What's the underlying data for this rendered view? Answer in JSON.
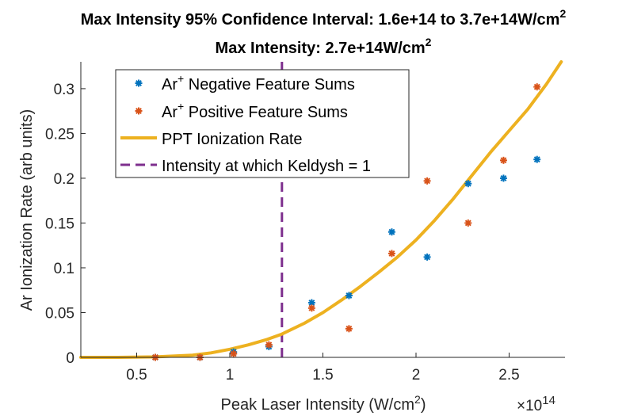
{
  "chart_data": {
    "type": "scatter",
    "title_line1": "Max Intensity 95% Confidence Interval: 1.6e+14 to 3.7e+14W/cm",
    "title_line1_sup": "2",
    "title_line2": "Max Intensity: 2.7e+14W/cm",
    "title_line2_sup": "2",
    "xlabel": "Peak Laser Intensity (W/cm",
    "xlabel_sup": "2",
    "xlabel_end": ")",
    "ylabel": "Ar Ionization Rate (arb units)",
    "x_exponent_prefix": "×10",
    "x_exponent": "14",
    "xlim": [
      0.2,
      2.8
    ],
    "ylim": [
      0,
      0.33
    ],
    "x_ticks": [
      0.5,
      1,
      1.5,
      2,
      2.5
    ],
    "x_tick_labels": [
      "0.5",
      "1",
      "1.5",
      "2",
      "2.5"
    ],
    "y_ticks": [
      0,
      0.05,
      0.1,
      0.15,
      0.2,
      0.25,
      0.3
    ],
    "y_tick_labels": [
      "0",
      "0.05",
      "0.1",
      "0.15",
      "0.2",
      "0.25",
      "0.3"
    ],
    "grid": false,
    "legend_position": "top-left",
    "series": [
      {
        "name": "Ar+ Negative Feature Sums",
        "legend_label": "Ar",
        "legend_sup": "+",
        "legend_rest": " Negative Feature Sums",
        "kind": "markers",
        "color": "#0072BD",
        "x": [
          0.6,
          0.84,
          1.02,
          1.21,
          1.44,
          1.64,
          1.87,
          2.06,
          2.28,
          2.47,
          2.65
        ],
        "y": [
          0.0,
          0.0,
          0.006,
          0.012,
          0.061,
          0.069,
          0.14,
          0.112,
          0.194,
          0.2,
          0.221
        ]
      },
      {
        "name": "Ar+ Positive Feature Sums",
        "legend_label": "Ar",
        "legend_sup": "+",
        "legend_rest": " Positive Feature Sums",
        "kind": "markers",
        "color": "#D95319",
        "x": [
          0.6,
          0.84,
          1.02,
          1.21,
          1.44,
          1.64,
          1.87,
          2.06,
          2.28,
          2.47,
          2.65
        ],
        "y": [
          0.0,
          0.0,
          0.004,
          0.014,
          0.055,
          0.032,
          0.116,
          0.197,
          0.15,
          0.22,
          0.302
        ]
      },
      {
        "name": "PPT Ionization Rate",
        "legend_label": "PPT Ionization Rate",
        "kind": "line",
        "color": "#EDB120",
        "x": [
          0.2,
          0.4,
          0.6,
          0.8,
          0.9,
          1.0,
          1.1,
          1.2,
          1.28,
          1.4,
          1.5,
          1.6,
          1.7,
          1.8,
          1.9,
          2.0,
          2.1,
          2.2,
          2.3,
          2.4,
          2.5,
          2.6,
          2.7,
          2.78
        ],
        "y": [
          0.0,
          0.0,
          0.0005,
          0.0025,
          0.005,
          0.009,
          0.014,
          0.02,
          0.026,
          0.038,
          0.05,
          0.064,
          0.079,
          0.095,
          0.112,
          0.131,
          0.153,
          0.177,
          0.203,
          0.229,
          0.253,
          0.277,
          0.305,
          0.33
        ]
      },
      {
        "name": "Intensity at which Keldysh = 1",
        "legend_label": "Intensity at which Keldysh = 1",
        "kind": "vline",
        "color": "#7E2F8E",
        "x_value": 1.28
      }
    ]
  }
}
